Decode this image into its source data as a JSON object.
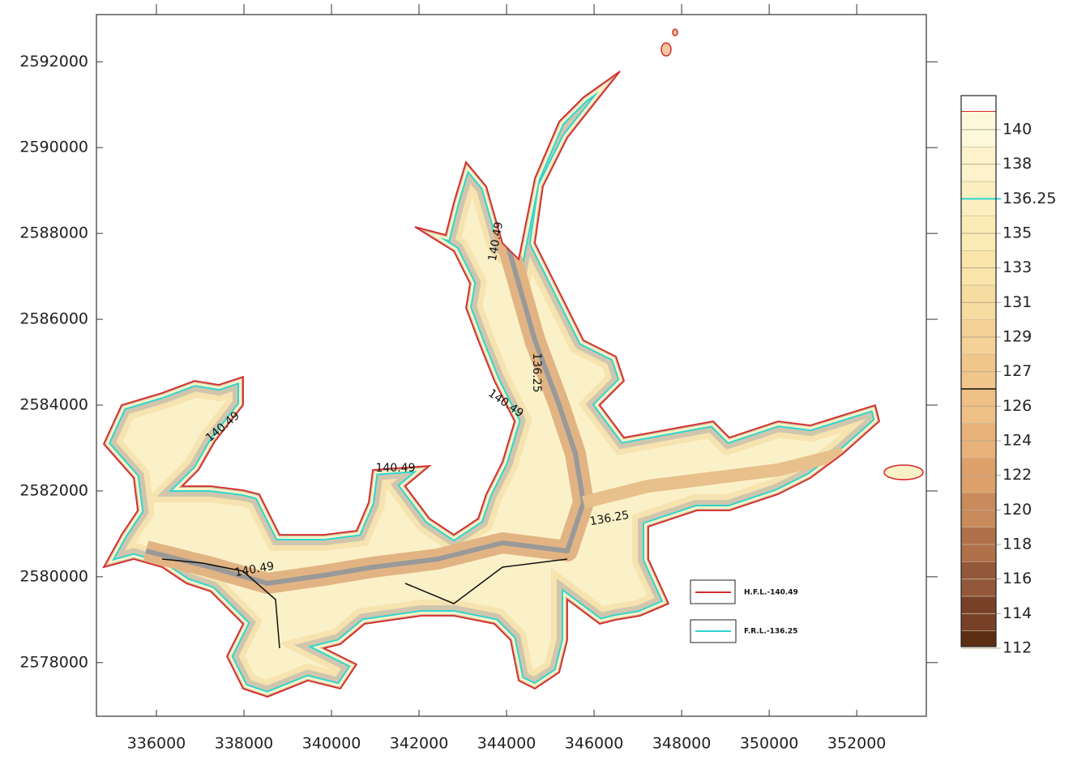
{
  "chart_data": {
    "type": "contour",
    "xlim": [
      334630,
      353590
    ],
    "ylim": [
      2576750,
      2593100
    ],
    "xticks": [
      336000,
      338000,
      340000,
      342000,
      344000,
      346000,
      348000,
      350000,
      352000
    ],
    "yticks": [
      2578000,
      2580000,
      2582000,
      2584000,
      2586000,
      2588000,
      2590000,
      2592000
    ],
    "colorbar": {
      "levels": [
        140,
        138,
        136.25,
        135,
        133,
        131,
        129,
        127,
        126,
        124,
        122,
        120,
        118,
        116,
        114,
        112
      ],
      "colors": [
        "#fdf8dc",
        "#fcf3cc",
        "#fbefc0",
        "#faeab4",
        "#f9e4aa",
        "#f6dca0",
        "#f4d196",
        "#f1c68c",
        "#efc088",
        "#e8b27a",
        "#dea06a",
        "#c98a5c",
        "#b0704a",
        "#93573a",
        "#774128",
        "#5c2f14"
      ]
    },
    "legend": [
      {
        "name": "H.F.L.-140.49",
        "color": "#d62a2a"
      },
      {
        "name": "F.R.L.-136.25",
        "color": "#2fd6d0"
      }
    ],
    "annotations": [
      "140.49",
      "140.49",
      "140.49",
      "140.49",
      "140.49",
      "136.25",
      "136.25"
    ]
  }
}
